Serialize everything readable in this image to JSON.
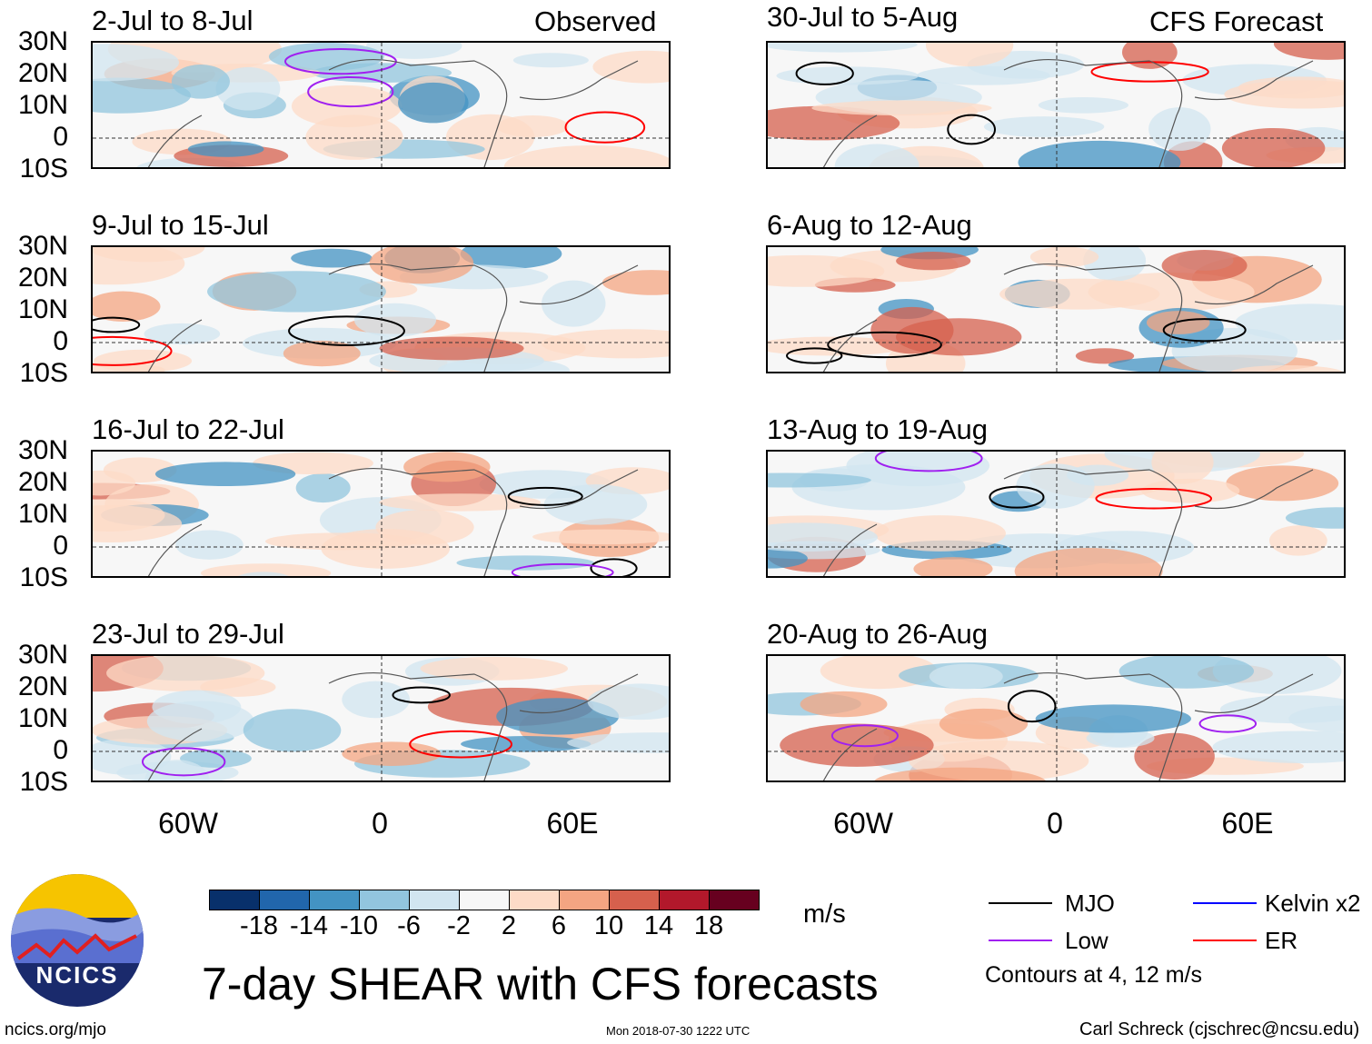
{
  "columns": [
    {
      "header": "Observed",
      "periods": [
        "2-Jul to 8-Jul",
        "9-Jul to 15-Jul",
        "16-Jul to 22-Jul",
        "23-Jul to 29-Jul"
      ]
    },
    {
      "header": "CFS Forecast",
      "periods": [
        "30-Jul to 5-Aug",
        "6-Aug to 12-Aug",
        "13-Aug to 19-Aug",
        "20-Aug to 26-Aug"
      ]
    }
  ],
  "lat_labels": [
    "30N",
    "20N",
    "10N",
    "0",
    "10S"
  ],
  "lon_labels": [
    "60W",
    "0",
    "60E"
  ],
  "colorbar": {
    "unit": "m/s",
    "ticks": [
      "-18",
      "-14",
      "-10",
      "-6",
      "-2",
      "2",
      "6",
      "10",
      "14",
      "18"
    ],
    "colors": [
      "#08306b",
      "#2166ac",
      "#4393c3",
      "#92c5de",
      "#d1e5f0",
      "#f7f7f7",
      "#fddbc7",
      "#f4a582",
      "#d6604d",
      "#b2182b",
      "#67001f"
    ]
  },
  "legend": {
    "items": [
      {
        "label": "MJO",
        "color": "#000000"
      },
      {
        "label": "Kelvin x2",
        "color": "#0000ff"
      },
      {
        "label": "Low",
        "color": "#a020f0"
      },
      {
        "label": "ER",
        "color": "#ff0000"
      }
    ],
    "note": "Contours at 4, 12 m/s"
  },
  "title": "7-day SHEAR with CFS forecasts",
  "logo": {
    "text": "NCICS"
  },
  "footer": {
    "url": "ncics.org/mjo",
    "timestamp": "Mon 2018-07-30 1222 UTC",
    "credit": "Carl Schreck (cjschrec@ncsu.edu)"
  }
}
